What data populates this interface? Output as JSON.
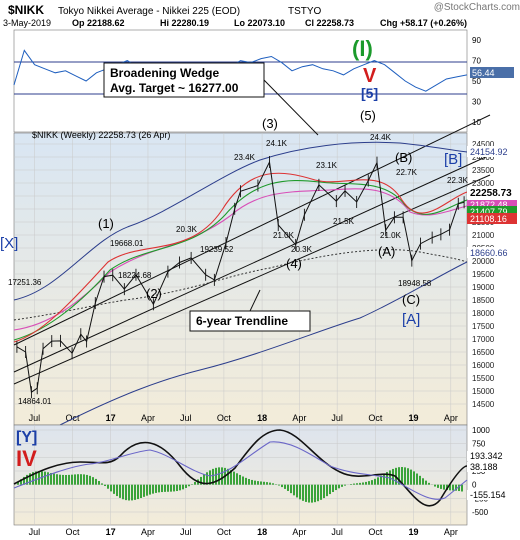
{
  "header": {
    "symbol": "$NIKK",
    "description": "Tokyo Nikkei Average - Nikkei 225 (EOD)",
    "exchange": "TSTYO",
    "watermark": "@StockCharts.com",
    "date": "3-May-2019",
    "open": "Op 22188.62",
    "high": "Hi 22280.19",
    "low": "Lo 22073.10",
    "close": "Cl 22258.73",
    "change": "Chg +58.17 (+0.26%)"
  },
  "rsi_panel": {
    "ticks": [
      "90",
      "70",
      "50",
      "30",
      "10"
    ],
    "value_label": "56.44",
    "wave_I": "(I)",
    "wave_V": "V",
    "wave_5": "[5]"
  },
  "price_panel": {
    "legend": "$NIKK (Weekly) 22258.73 (26 Apr)",
    "price_ticks": [
      "24500",
      "24000",
      "23500",
      "23000",
      "22500",
      "22000",
      "21500",
      "21000",
      "20500",
      "20000",
      "19500",
      "19000",
      "18500",
      "18000",
      "17500",
      "17000",
      "16500",
      "16000",
      "15500",
      "15000",
      "14500"
    ],
    "right_labels": {
      "ma1": "24154.92",
      "close": "22258.73",
      "ma2": "21872.48",
      "ma3": "21407.79",
      "ma4": "21108.16",
      "ma5": "18660.66"
    },
    "callout_wedge": [
      "Broadening Wedge",
      "Avg. Target ~ 16277.00"
    ],
    "callout_trend": "6-year Trendline",
    "price_labels": [
      "17251.36",
      "14864.01",
      "19668.01",
      "18224.68",
      "20.3K",
      "19239.52",
      "23.4K",
      "24.1K",
      "21.0K",
      "20.3K",
      "23.1K",
      "21.5K",
      "24.4K",
      "22.7K",
      "21.0K",
      "18948.58",
      "22.3K"
    ],
    "wave_labels": [
      "(1)",
      "(2)",
      "(3)",
      "(4)",
      "(5)",
      "(A)",
      "(B)",
      "(C)",
      "[A]",
      "[B]",
      "[X]"
    ],
    "x_ticks": [
      "Jul",
      "Oct",
      "17",
      "Apr",
      "Jul",
      "Oct",
      "18",
      "Apr",
      "Jul",
      "Oct",
      "19",
      "Apr"
    ]
  },
  "macd_panel": {
    "ticks": [
      "1000",
      "750",
      "500",
      "250",
      "0",
      "-250",
      "-500"
    ],
    "right_labels": [
      "193.342",
      "38.188",
      "-155.154"
    ],
    "wave_Y": "[Y]",
    "wave_IV": "IV",
    "x_ticks": [
      "Jul",
      "Oct",
      "17",
      "Apr",
      "Jul",
      "Oct",
      "18",
      "Apr",
      "Jul",
      "Oct",
      "19",
      "Apr"
    ]
  },
  "chart_data": {
    "type": "line",
    "title": "$NIKK Tokyo Nikkei Average - Nikkei 225 (EOD)",
    "x_tick_labels": [
      "Jul",
      "Oct",
      "17",
      "Apr",
      "Jul",
      "Oct",
      "18",
      "Apr",
      "Jul",
      "Oct",
      "19",
      "Apr"
    ],
    "series": [
      {
        "name": "$NIKK (Weekly)",
        "points": [
          [
            "2016-05-20",
            16700
          ],
          [
            "2016-06-10",
            16500
          ],
          [
            "2016-06-24",
            14952
          ],
          [
            "2016-07-08",
            15106
          ],
          [
            "2016-07-22",
            16627
          ],
          [
            "2016-08-12",
            16920
          ],
          [
            "2016-09-02",
            16926
          ],
          [
            "2016-09-30",
            16450
          ],
          [
            "2016-10-21",
            17185
          ],
          [
            "2016-11-04",
            16905
          ],
          [
            "2016-11-25",
            18381
          ],
          [
            "2016-12-16",
            19401
          ],
          [
            "2017-01-06",
            19454
          ],
          [
            "2017-02-03",
            18918
          ],
          [
            "2017-03-03",
            19469
          ],
          [
            "2017-04-14",
            18335
          ],
          [
            "2017-05-19",
            19590
          ],
          [
            "2017-06-16",
            19943
          ],
          [
            "2017-07-14",
            20118
          ],
          [
            "2017-08-18",
            19470
          ],
          [
            "2017-09-08",
            19274
          ],
          [
            "2017-10-06",
            20690
          ],
          [
            "2017-10-27",
            22008
          ],
          [
            "2017-11-10",
            22681
          ],
          [
            "2017-12-22",
            22902
          ],
          [
            "2018-01-19",
            23808
          ],
          [
            "2018-02-09",
            21383
          ],
          [
            "2018-03-23",
            20618
          ],
          [
            "2018-04-13",
            21778
          ],
          [
            "2018-05-18",
            22930
          ],
          [
            "2018-06-29",
            22304
          ],
          [
            "2018-07-20",
            22697
          ],
          [
            "2018-08-17",
            22270
          ],
          [
            "2018-09-14",
            23094
          ],
          [
            "2018-10-05",
            23784
          ],
          [
            "2018-10-26",
            21184
          ],
          [
            "2018-11-16",
            21680
          ],
          [
            "2018-12-07",
            21679
          ],
          [
            "2018-12-28",
            20015
          ],
          [
            "2019-01-18",
            20666
          ],
          [
            "2019-02-15",
            20900
          ],
          [
            "2019-03-08",
            21025
          ],
          [
            "2019-03-29",
            21205
          ],
          [
            "2019-04-19",
            22200
          ],
          [
            "2019-05-03",
            22258.73
          ]
        ]
      }
    ],
    "ylim": [
      14300,
      24700
    ],
    "y_tick_labels": [
      "24500",
      "24000",
      "23500",
      "23000",
      "22500",
      "22000",
      "21500",
      "21000",
      "20500",
      "20000",
      "19500",
      "19000",
      "18500",
      "18000",
      "17500",
      "17000",
      "16500",
      "16000",
      "15500",
      "15000",
      "14500"
    ],
    "indicators": {
      "rsi_ticks": [
        "90",
        "70",
        "50",
        "30",
        "10"
      ],
      "rsi_last": 56.44,
      "macd_ticks": [
        "1000",
        "750",
        "500",
        "250",
        "0",
        "-250",
        "-500"
      ],
      "macd_last": [
        193.342,
        38.188,
        -155.154
      ]
    },
    "grid": true
  }
}
